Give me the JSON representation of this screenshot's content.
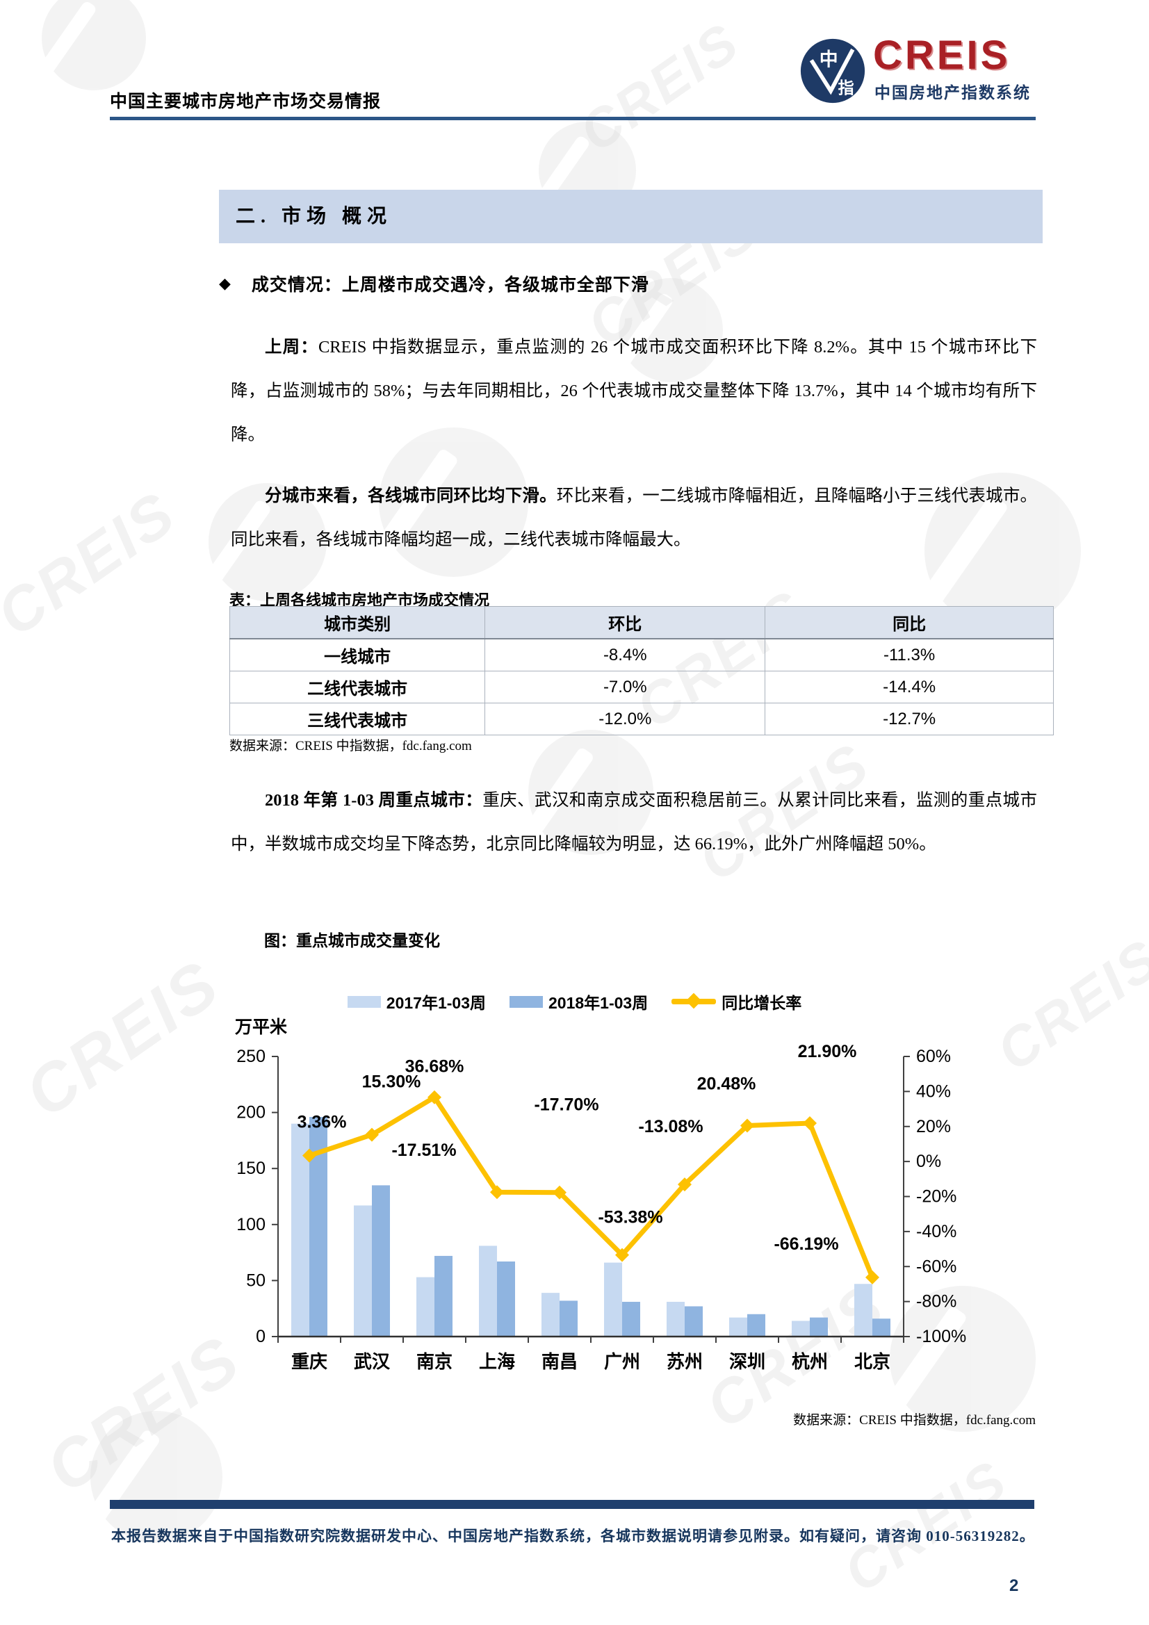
{
  "page": {
    "header": {
      "title": "中国主要城市房地产市场交易情报",
      "logo": {
        "word": "CREIS",
        "subtitle": "中国房地产指数系统",
        "badge_char_top": "中",
        "badge_char_bottom": "指"
      }
    },
    "section_banner": "二. 市场 概况",
    "bullet": {
      "icon": "◆",
      "text": "成交情况：上周楼市成交遇冷，各级城市全部下滑"
    },
    "paragraphs": [
      {
        "lead": "上周：",
        "text": "CREIS 中指数据显示，重点监测的 26 个城市成交面积环比下降 8.2%。其中 15 个城市环比下降，占监测城市的 58%；与去年同期相比，26 个代表城市成交量整体下降 13.7%，其中 14 个城市均有所下降。"
      },
      {
        "lead": "分城市来看，各线城市同环比均下滑。",
        "text": "环比来看，一二线城市降幅相近，且降幅略小于三线代表城市。同比来看，各线城市降幅均超一成，二线代表城市降幅最大。"
      },
      {
        "lead": "2018 年第 1-03 周重点城市：",
        "text": "重庆、武汉和南京成交面积稳居前三。从累计同比来看，监测的重点城市中，半数城市成交均呈下降态势，北京同比降幅较为明显，达 66.19%，此外广州降幅超 50%。"
      }
    ],
    "table": {
      "title": "表：上周各线城市房地产市场成交情况",
      "headers": [
        "城市类别",
        "环比",
        "同比"
      ],
      "rows": [
        [
          "一线城市",
          "-8.4%",
          "-11.3%"
        ],
        [
          "二线代表城市",
          "-7.0%",
          "-14.4%"
        ],
        [
          "三线代表城市",
          "-12.0%",
          "-12.7%"
        ]
      ],
      "source": "数据来源：CREIS 中指数据，fdc.fang.com"
    },
    "chart_section": {
      "title": "图：重点城市成交量变化",
      "source": "数据来源：CREIS 中指数据，fdc.fang.com"
    },
    "footer": {
      "text": "本报告数据来自于中国指数研究院数据研发中心、中国房地产指数系统，各城市数据说明请参见附录。如有疑问，请咨询 010-56319282。",
      "page_number": "2"
    },
    "watermark_text": "CREIS"
  },
  "chart_data": {
    "type": "bar",
    "title": "图：重点城市成交量变化",
    "categories": [
      "重庆",
      "武汉",
      "南京",
      "上海",
      "南昌",
      "广州",
      "苏州",
      "深圳",
      "杭州",
      "北京"
    ],
    "series": [
      {
        "name": "2017年1-03周",
        "type": "bar",
        "color": "#c6d9f1",
        "values": [
          190,
          117,
          53,
          81,
          39,
          66,
          31,
          17,
          14,
          47
        ]
      },
      {
        "name": "2018年1-03周",
        "type": "bar",
        "color": "#8fb4e0",
        "values": [
          196,
          135,
          72,
          67,
          32,
          31,
          27,
          20,
          17,
          16
        ]
      },
      {
        "name": "同比增长率",
        "type": "line",
        "axis": "right",
        "color": "#fdc101",
        "values": [
          3.36,
          15.3,
          36.68,
          -17.51,
          -17.7,
          -53.38,
          -13.08,
          20.48,
          21.9,
          -66.19
        ],
        "labels": [
          "3.36%",
          "15.30%",
          "36.68%",
          "-17.51%",
          "-17.70%",
          "-53.38%",
          "-13.08%",
          "20.48%",
          "21.90%",
          "-66.19%"
        ]
      }
    ],
    "left_axis": {
      "label": "万平米",
      "min": 0,
      "max": 250,
      "step": 50
    },
    "right_axis": {
      "min": -100,
      "max": 60,
      "step": 20,
      "suffix": "%"
    },
    "legend_position": "top",
    "grid": false
  }
}
